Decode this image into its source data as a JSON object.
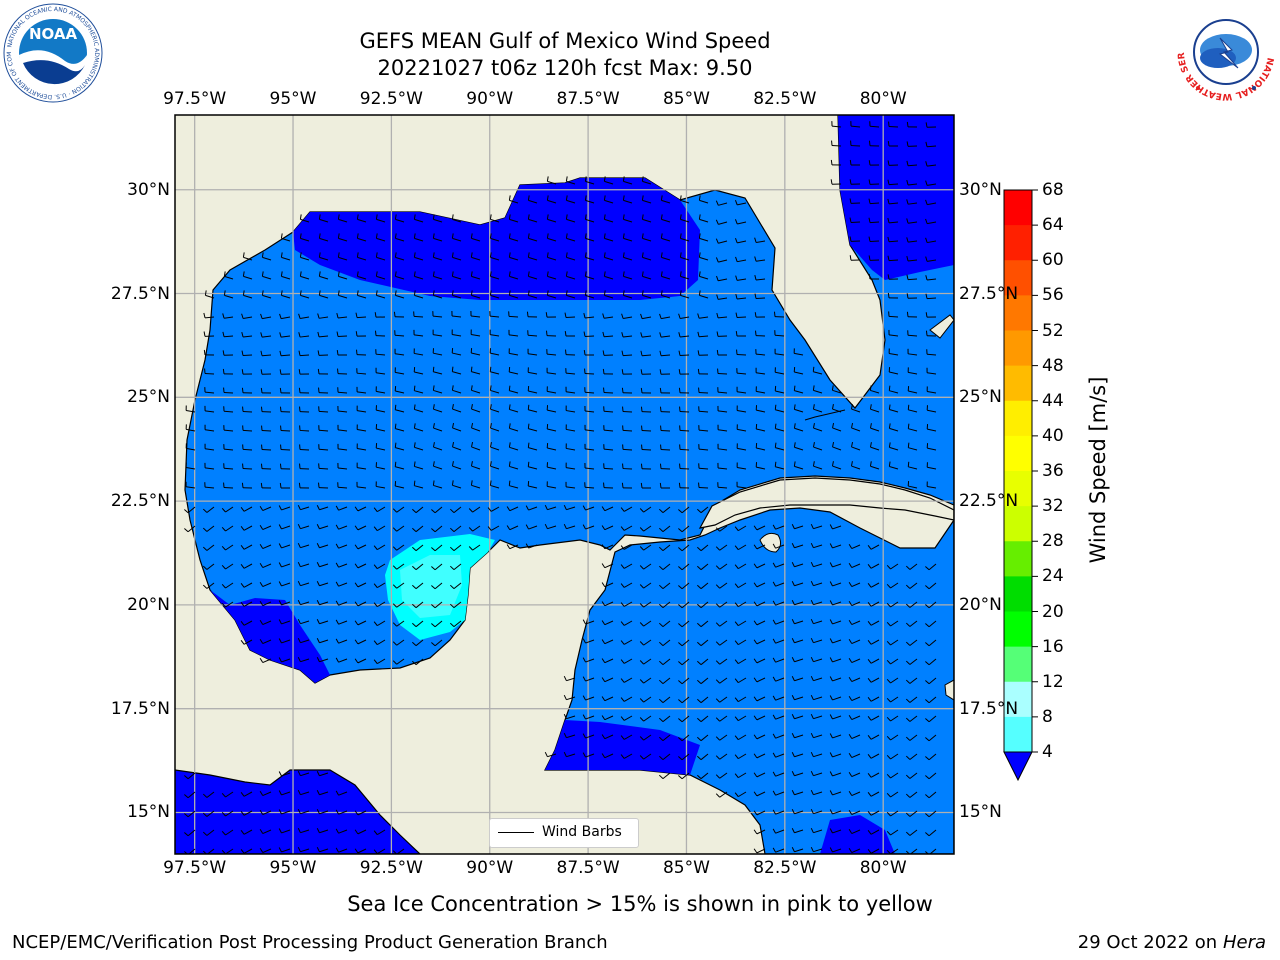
{
  "header": {
    "title": "GEFS MEAN Gulf of Mexico Wind Speed",
    "subtitle": "20221027 t06z 120h fcst   Max: 9.50"
  },
  "map": {
    "x_ticks": [
      "97.5°W",
      "95°W",
      "92.5°W",
      "90°W",
      "87.5°W",
      "85°W",
      "82.5°W",
      "80°W"
    ],
    "y_ticks_left": [
      "30°N",
      "27.5°N",
      "25°N",
      "22.5°N",
      "20°N",
      "17.5°N",
      "15°N"
    ],
    "y_ticks_right": [
      "30°N",
      "27.5°N",
      "25°N",
      "22.5°N",
      "20°N",
      "17.5°N",
      "15°N"
    ],
    "lon_range": [
      -98,
      -78.2
    ],
    "lat_range": [
      14,
      31.8
    ],
    "legend_label": "Wind Barbs",
    "colors": {
      "land": "#eeeedd",
      "shade_4_8": "#0080ff",
      "shade_below_4": "#0000ff",
      "shade_8_12": "#00ffff",
      "shade_12_16": "#40ffff",
      "barb": "#000000",
      "grid": "#b0b0b0"
    }
  },
  "colorbar": {
    "label": "Wind Speed [m/s]",
    "ticks": [
      "68",
      "64",
      "60",
      "56",
      "52",
      "48",
      "44",
      "40",
      "36",
      "32",
      "28",
      "24",
      "20",
      "16",
      "12",
      "8",
      "4"
    ],
    "colors": [
      "#ff0000",
      "#ff2000",
      "#ff5000",
      "#ff7800",
      "#ff9900",
      "#ffbb00",
      "#ffee00",
      "#ffff00",
      "#e8ff00",
      "#ccff00",
      "#66ee00",
      "#00dd00",
      "#00ff00",
      "#55ff77",
      "#aaffff",
      "#55ffff",
      "#00ffff",
      "#0080ff",
      "#0000ff"
    ]
  },
  "logos": {
    "noaa": {
      "text": "NOAA",
      "ring_text": "NATIONAL OCEANIC AND ATMOSPHERIC ADMINISTRATION · U.S. DEPARTMENT OF COMMERCE"
    },
    "nws": {
      "ring_text": "NATIONAL WEATHER SERVICE"
    }
  },
  "caption": "Sea Ice Concentration > 15% is shown in pink to yellow",
  "footer": {
    "left": "NCEP/EMC/Verification Post Processing Product Generation Branch",
    "right_prefix": "29 Oct 2022 on ",
    "right_machine": "Hera"
  }
}
